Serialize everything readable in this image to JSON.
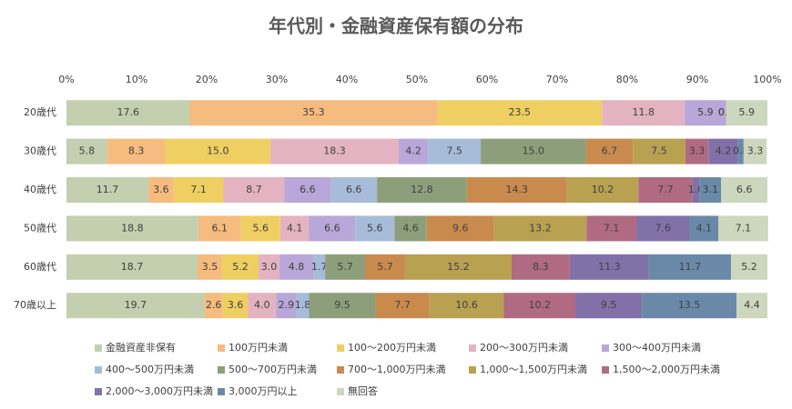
{
  "chart_data": {
    "type": "stacked-barh",
    "title": "年代別・金融資産保有額の分布",
    "categories": [
      "20歳代",
      "30歳代",
      "40歳代",
      "50歳代",
      "60歳代",
      "70歳以上"
    ],
    "xlim": [
      0,
      100
    ],
    "xticks": [
      {
        "value": 0,
        "label": "0%"
      },
      {
        "value": 10,
        "label": "10%"
      },
      {
        "value": 20,
        "label": "20%"
      },
      {
        "value": 30,
        "label": "30%"
      },
      {
        "value": 40,
        "label": "40%"
      },
      {
        "value": 50,
        "label": "50%"
      },
      {
        "value": 60,
        "label": "60%"
      },
      {
        "value": 70,
        "label": "70%"
      },
      {
        "value": 80,
        "label": "80%"
      },
      {
        "value": 90,
        "label": "90%"
      },
      {
        "value": 100,
        "label": "100%"
      }
    ],
    "legend": "bottom",
    "series": [
      {
        "name": "金融資産非保有",
        "color": "#c3cfae",
        "values": [
          17.6,
          5.8,
          11.7,
          18.8,
          18.7,
          19.7
        ]
      },
      {
        "name": "100万円未満",
        "color": "#f6bb7f",
        "values": [
          35.3,
          8.3,
          3.6,
          6.1,
          3.5,
          2.6
        ]
      },
      {
        "name": "100～200万円未満",
        "color": "#efcf62",
        "values": [
          23.5,
          15.0,
          7.1,
          5.6,
          5.2,
          3.6
        ],
        "value_labels": [
          "23.5",
          "15.0",
          "7.1",
          "5.6",
          "5.2",
          "3.6"
        ]
      },
      {
        "name": "200～300万円未満",
        "color": "#e4b3c2",
        "values": [
          11.8,
          18.3,
          8.7,
          4.1,
          3.0,
          4.0
        ],
        "value_labels": [
          "11.8",
          "18.3",
          "8.7",
          "4.1",
          "3.0",
          "4.0"
        ]
      },
      {
        "name": "300～400万円未満",
        "color": "#b8a7d8",
        "values": [
          5.9,
          4.2,
          6.6,
          6.6,
          4.8,
          2.9
        ]
      },
      {
        "name": "400～500万円未満",
        "color": "#a7bcd8",
        "values": [
          0,
          7.5,
          6.6,
          5.6,
          1.7,
          1.8
        ],
        "value_labels": [
          "0.0",
          "7.5",
          "6.6",
          "5.6",
          "1.7",
          "1.8"
        ]
      },
      {
        "name": "500～700万円未満",
        "color": "#8c9f7a",
        "values": [
          0,
          15.0,
          12.8,
          4.6,
          5.7,
          9.5
        ],
        "value_labels": [
          "0.0",
          "15.0",
          "12.8",
          "4.6",
          "5.7",
          "9.5"
        ]
      },
      {
        "name": "700～1,000万円未満",
        "color": "#c98a4e",
        "values": [
          null,
          6.7,
          14.3,
          9.6,
          5.7,
          7.7
        ]
      },
      {
        "name": "1,000～1,500万円未満",
        "color": "#b9a152",
        "values": [
          null,
          7.5,
          10.2,
          13.2,
          15.2,
          10.6
        ]
      },
      {
        "name": "1,500～2,000万円未満",
        "color": "#b06b82",
        "values": [
          null,
          3.3,
          7.7,
          7.1,
          8.3,
          10.2
        ]
      },
      {
        "name": "2,000～3,000万円未満",
        "color": "#8271a9",
        "values": [
          null,
          4.2,
          1.0,
          7.6,
          11.3,
          9.5
        ],
        "value_labels": [
          null,
          "4.2",
          "1.0",
          "7.6",
          "11.3",
          "9.5"
        ]
      },
      {
        "name": "3,000万円以上",
        "color": "#6a89a9",
        "values": [
          null,
          0.8,
          3.1,
          4.1,
          11.7,
          13.5
        ]
      },
      {
        "name": "無回答",
        "color": "#cdd7bd",
        "values": [
          5.9,
          3.3,
          6.6,
          7.1,
          5.2,
          4.4
        ]
      }
    ]
  }
}
